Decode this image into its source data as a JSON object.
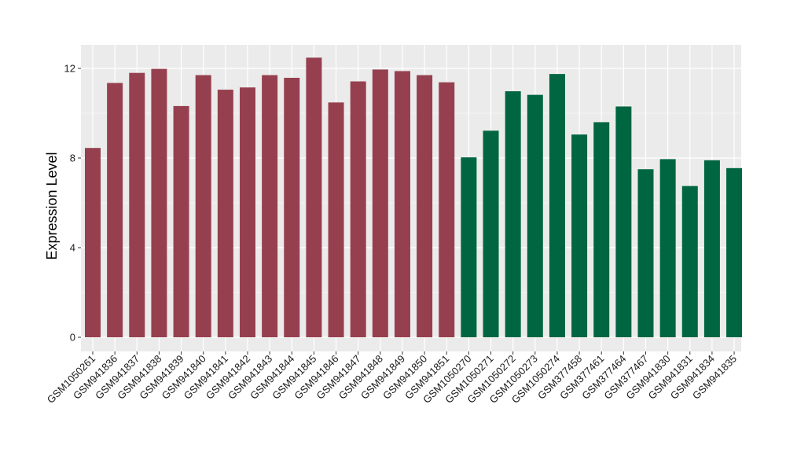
{
  "chart_data": {
    "type": "bar",
    "title": "",
    "xlabel": "",
    "ylabel": "Expression Level",
    "ylim": [
      0,
      13.0
    ],
    "yticks": [
      0,
      4,
      8,
      12
    ],
    "grid": true,
    "legend": "none",
    "categories": [
      "GSM1050261",
      "GSM941836",
      "GSM941837",
      "GSM941838",
      "GSM941839",
      "GSM941840",
      "GSM941841",
      "GSM941842",
      "GSM941843",
      "GSM941844",
      "GSM941845",
      "GSM941846",
      "GSM941847",
      "GSM941848",
      "GSM941849",
      "GSM941850",
      "GSM941851",
      "GSM1050270",
      "GSM1050271",
      "GSM1050272",
      "GSM1050273",
      "GSM1050274",
      "GSM377458",
      "GSM377461",
      "GSM377464",
      "GSM377467",
      "GSM941830",
      "GSM941831",
      "GSM941834",
      "GSM941835"
    ],
    "values": [
      8.45,
      11.35,
      11.8,
      11.98,
      10.32,
      11.7,
      11.05,
      11.15,
      11.7,
      11.58,
      12.48,
      10.48,
      11.42,
      11.95,
      11.88,
      11.7,
      11.38,
      8.03,
      9.22,
      10.98,
      10.82,
      11.75,
      9.05,
      9.6,
      10.3,
      7.5,
      7.95,
      6.75,
      7.9,
      7.55
    ],
    "groups": [
      "a",
      "a",
      "a",
      "a",
      "a",
      "a",
      "a",
      "a",
      "a",
      "a",
      "a",
      "a",
      "a",
      "a",
      "a",
      "a",
      "a",
      "b",
      "b",
      "b",
      "b",
      "b",
      "b",
      "b",
      "b",
      "b",
      "b",
      "b",
      "b",
      "b"
    ],
    "colors": {
      "a": "#96404f",
      "b": "#006641"
    },
    "panel_background": "#ebebeb",
    "gridline_color": "#ffffff"
  }
}
